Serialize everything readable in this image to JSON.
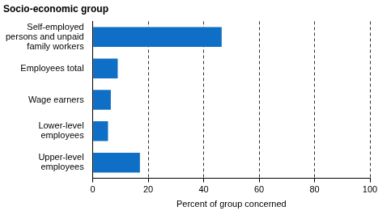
{
  "chart_data": {
    "type": "bar",
    "orientation": "horizontal",
    "title": "Socio-economic group",
    "x_label": "Percent of group concerned",
    "categories": [
      "Self-employed persons and unpaid family workers",
      "Employees total",
      "Wage earners",
      "Lower-level employees",
      "Upper-level employees"
    ],
    "values": [
      46.5,
      9,
      6.5,
      5.5,
      17
    ],
    "color": "#0f6fc6",
    "xlim": [
      0,
      100
    ],
    "xticks": [
      0,
      20,
      40,
      60,
      80,
      100
    ],
    "grid": true
  }
}
